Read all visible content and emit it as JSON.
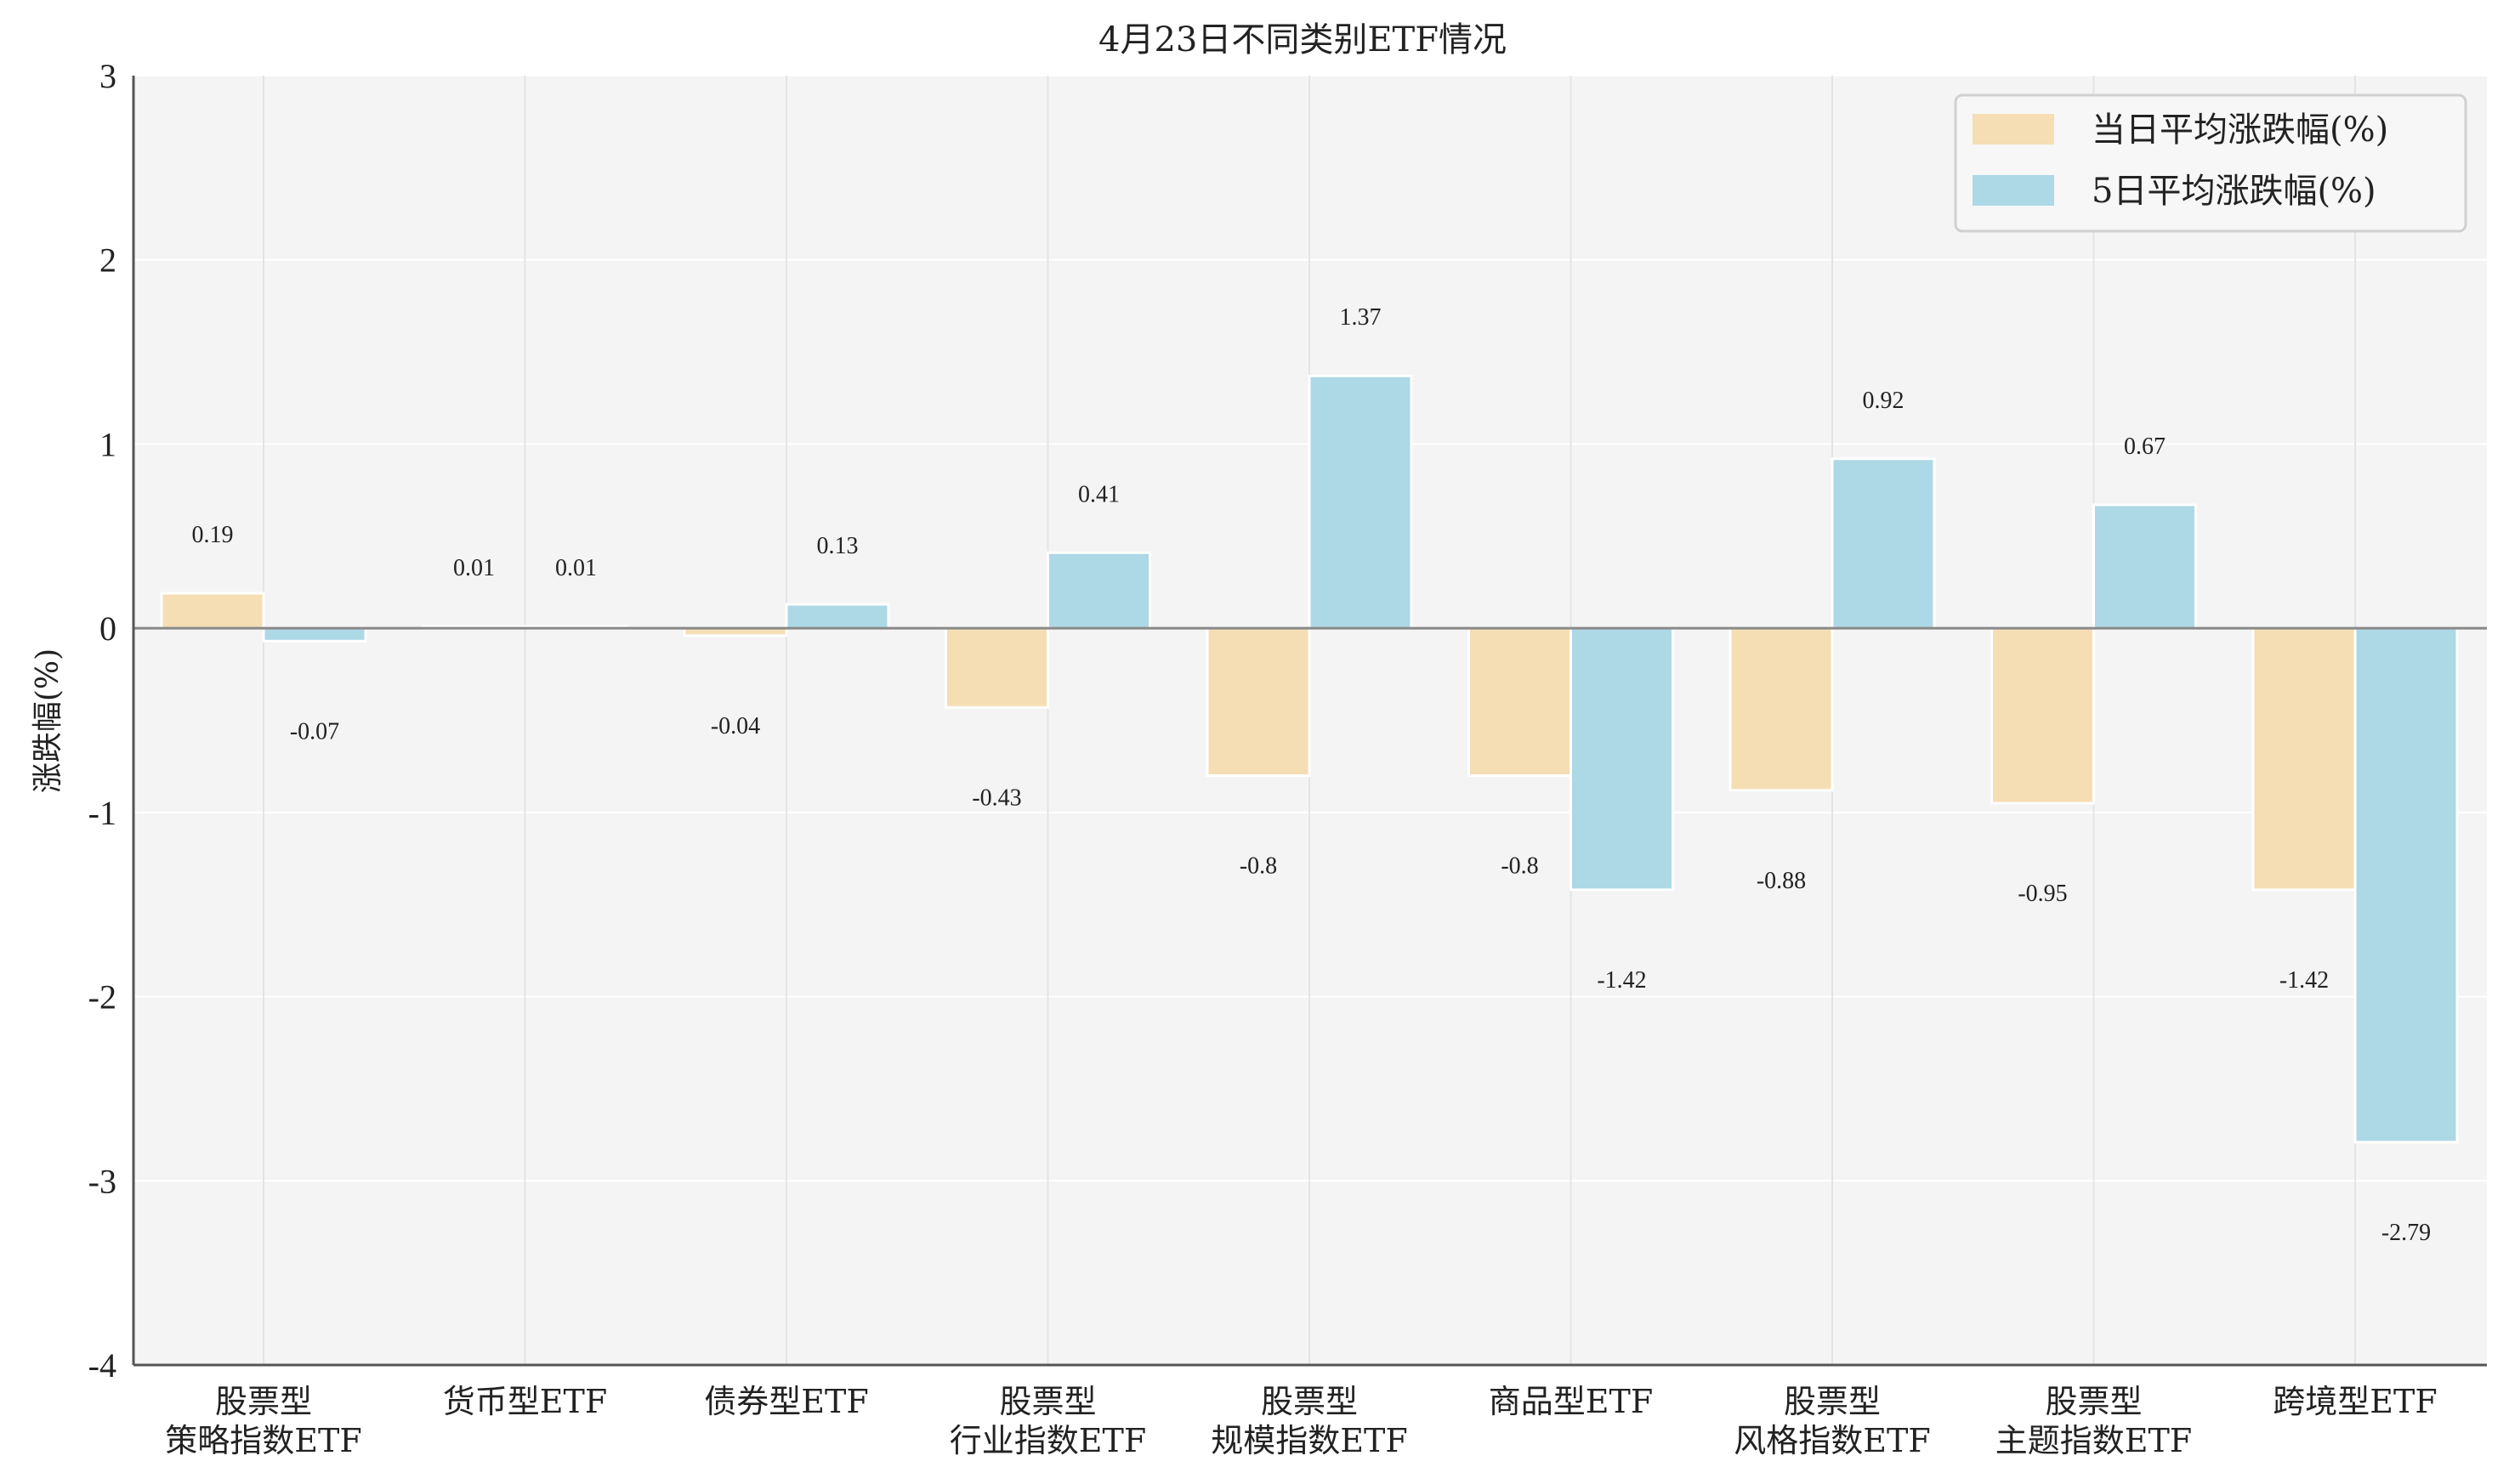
{
  "chart_data": {
    "type": "bar",
    "title": "4月23日不同类别ETF情况",
    "xlabel": "",
    "ylabel": "涨跌幅(%)",
    "ylim": [
      -4,
      3
    ],
    "yticks": [
      3,
      2,
      1,
      0,
      -1,
      -2,
      -3,
      -4
    ],
    "grid": true,
    "legend_position": "top-right",
    "categories": [
      [
        "股票型",
        "策略指数ETF"
      ],
      [
        "货币型ETF"
      ],
      [
        "债券型ETF"
      ],
      [
        "股票型",
        "行业指数ETF"
      ],
      [
        "股票型",
        "规模指数ETF"
      ],
      [
        "商品型ETF"
      ],
      [
        "股票型",
        "风格指数ETF"
      ],
      [
        "股票型",
        "主题指数ETF"
      ],
      [
        "跨境型ETF"
      ]
    ],
    "series": [
      {
        "name": "当日平均涨跌幅(%)",
        "color": "#f5deb3",
        "values": [
          0.19,
          0.01,
          -0.04,
          -0.43,
          -0.8,
          -0.8,
          -0.88,
          -0.95,
          -1.42
        ],
        "labels": [
          "0.19",
          "0.01",
          "-0.04",
          "-0.43",
          "-0.8",
          "-0.8",
          "-0.88",
          "-0.95",
          "-1.42"
        ]
      },
      {
        "name": "5日平均涨跌幅(%)",
        "color": "#add8e6",
        "values": [
          -0.07,
          0.01,
          0.13,
          0.41,
          1.37,
          -1.42,
          0.92,
          0.67,
          -2.79
        ],
        "labels": [
          "-0.07",
          "0.01",
          "0.13",
          "0.41",
          "1.37",
          "-1.42",
          "0.92",
          "0.67",
          "-2.79"
        ]
      }
    ]
  }
}
